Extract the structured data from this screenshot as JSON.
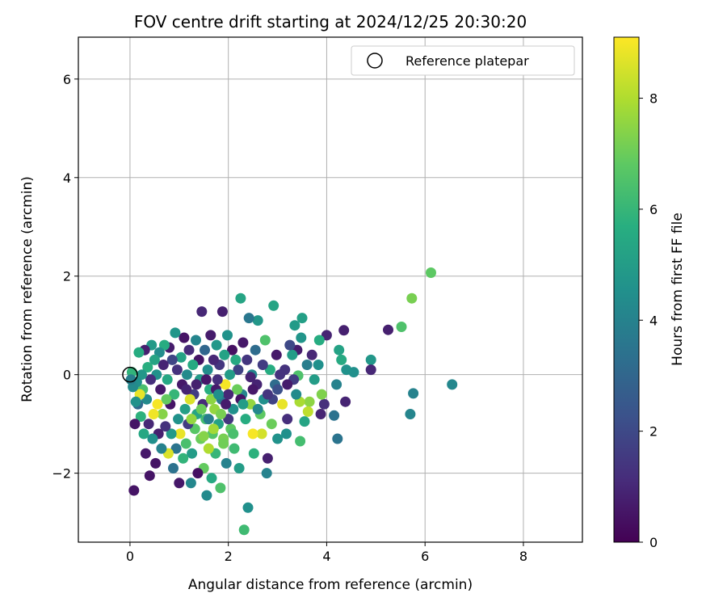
{
  "chart_data": {
    "type": "scatter",
    "title": "FOV centre drift starting at 2024/12/25 20:30:20",
    "xlabel": "Angular distance from reference (arcmin)",
    "ylabel": "Rotation from reference (arcmin)",
    "xlim": [
      -1.05,
      9.2
    ],
    "ylim": [
      -3.4,
      6.85
    ],
    "xticks": [
      0,
      2,
      4,
      6,
      8
    ],
    "yticks": [
      -2,
      0,
      2,
      4,
      6
    ],
    "grid": true,
    "legend": {
      "position": "top-right",
      "entries": [
        "Reference platepar"
      ]
    },
    "reference_point": {
      "x": 0,
      "y": 0
    },
    "colorbar": {
      "label": "Hours from first FF file",
      "range": [
        0,
        9.1
      ],
      "ticks": [
        0,
        2,
        4,
        6,
        8
      ],
      "colormap": "viridis"
    },
    "series": [
      {
        "name": "Reference platepar",
        "points": [
          [
            6.12,
            2.07,
            6.8
          ],
          [
            5.73,
            1.55,
            7.2
          ],
          [
            5.52,
            0.97,
            6.5
          ],
          [
            5.25,
            0.91,
            0.8
          ],
          [
            6.55,
            -0.2,
            4.2
          ],
          [
            5.76,
            -0.38,
            4.0
          ],
          [
            5.7,
            -0.8,
            4.1
          ],
          [
            4.9,
            0.3,
            4.8
          ],
          [
            4.9,
            0.1,
            1.0
          ],
          [
            4.55,
            0.05,
            4.5
          ],
          [
            4.4,
            0.1,
            4.6
          ],
          [
            4.35,
            0.9,
            0.8
          ],
          [
            4.38,
            -0.55,
            0.9
          ],
          [
            4.3,
            0.3,
            5.5
          ],
          [
            4.25,
            0.5,
            5.2
          ],
          [
            4.22,
            -1.3,
            3.5
          ],
          [
            4.2,
            -0.2,
            4.0
          ],
          [
            4.15,
            -0.83,
            3.4
          ],
          [
            4.0,
            0.8,
            0.9
          ],
          [
            3.95,
            -0.6,
            1.2
          ],
          [
            3.9,
            -0.4,
            7.3
          ],
          [
            3.88,
            -0.8,
            0.9
          ],
          [
            3.85,
            0.7,
            5.6
          ],
          [
            3.83,
            0.2,
            4.5
          ],
          [
            3.75,
            -0.1,
            5.0
          ],
          [
            3.7,
            0.4,
            1.0
          ],
          [
            3.65,
            -0.55,
            7.5
          ],
          [
            3.62,
            -0.75,
            8.2
          ],
          [
            3.6,
            0.2,
            3.8
          ],
          [
            3.55,
            -0.95,
            5.3
          ],
          [
            3.5,
            1.15,
            5.1
          ],
          [
            3.48,
            0.75,
            4.7
          ],
          [
            3.46,
            -1.35,
            6.3
          ],
          [
            3.45,
            -0.55,
            7.9
          ],
          [
            3.42,
            -0.02,
            6.5
          ],
          [
            3.4,
            0.5,
            0.7
          ],
          [
            3.38,
            -0.4,
            4.3
          ],
          [
            3.35,
            1.0,
            4.9
          ],
          [
            3.33,
            -0.1,
            1.6
          ],
          [
            3.3,
            0.4,
            5.0
          ],
          [
            3.25,
            0.6,
            2.0
          ],
          [
            3.2,
            -0.9,
            1.2
          ],
          [
            3.18,
            -1.2,
            4.5
          ],
          [
            3.15,
            0.1,
            1.3
          ],
          [
            3.1,
            -0.6,
            8.8
          ],
          [
            3.05,
            0.0,
            1.3
          ],
          [
            3.0,
            -1.3,
            4.6
          ],
          [
            2.98,
            0.4,
            0.6
          ],
          [
            2.95,
            -0.2,
            3.2
          ],
          [
            2.92,
            1.4,
            5.3
          ],
          [
            2.9,
            -0.5,
            1.8
          ],
          [
            2.88,
            -1.0,
            7.0
          ],
          [
            2.85,
            0.1,
            5.6
          ],
          [
            2.8,
            -1.7,
            0.8
          ],
          [
            2.78,
            -2.0,
            4.0
          ],
          [
            2.75,
            0.7,
            6.5
          ],
          [
            2.72,
            -0.5,
            4.5
          ],
          [
            2.7,
            0.2,
            1.6
          ],
          [
            2.68,
            -1.2,
            8.5
          ],
          [
            2.65,
            -0.8,
            6.8
          ],
          [
            2.6,
            1.1,
            4.8
          ],
          [
            2.58,
            -0.2,
            0.9
          ],
          [
            2.55,
            0.5,
            3.2
          ],
          [
            2.52,
            -1.6,
            5.8
          ],
          [
            2.5,
            -1.2,
            9.0
          ],
          [
            2.48,
            0.0,
            4.2
          ],
          [
            2.45,
            -0.6,
            7.6
          ],
          [
            2.42,
            1.15,
            3.6
          ],
          [
            2.4,
            -2.7,
            4.5
          ],
          [
            2.38,
            0.3,
            1.4
          ],
          [
            2.35,
            -0.9,
            5.6
          ],
          [
            2.32,
            -3.15,
            6.2
          ],
          [
            2.3,
            0.65,
            0.6
          ],
          [
            2.28,
            -0.4,
            4.1
          ],
          [
            2.25,
            1.55,
            5.3
          ],
          [
            2.22,
            -1.9,
            5.0
          ],
          [
            2.2,
            0.1,
            1.8
          ],
          [
            2.18,
            -0.3,
            7.0
          ],
          [
            2.15,
            0.3,
            5.5
          ],
          [
            2.12,
            -1.5,
            6.2
          ],
          [
            2.1,
            -0.7,
            4.5
          ],
          [
            2.08,
            0.5,
            0.4
          ],
          [
            2.05,
            -1.1,
            6.8
          ],
          [
            2.03,
            0.0,
            5.0
          ],
          [
            2.0,
            -0.9,
            1.4
          ],
          [
            1.98,
            0.8,
            4.6
          ],
          [
            1.96,
            -1.8,
            4.0
          ],
          [
            1.94,
            -0.2,
            9.0
          ],
          [
            1.92,
            0.4,
            5.2
          ],
          [
            1.9,
            -1.3,
            7.2
          ],
          [
            1.88,
            1.28,
            0.8
          ],
          [
            1.86,
            -0.5,
            3.6
          ],
          [
            1.84,
            -2.3,
            6.5
          ],
          [
            1.82,
            0.2,
            1.4
          ],
          [
            1.8,
            -1.0,
            5.2
          ],
          [
            1.78,
            -0.1,
            1.2
          ],
          [
            1.76,
            0.6,
            4.8
          ],
          [
            1.74,
            -1.6,
            6.0
          ],
          [
            1.72,
            -0.7,
            7.6
          ],
          [
            1.7,
            0.3,
            1.0
          ],
          [
            1.68,
            -1.2,
            6.6
          ],
          [
            1.66,
            -2.1,
            5.5
          ],
          [
            1.64,
            0.8,
            0.7
          ],
          [
            1.62,
            -0.3,
            5.7
          ],
          [
            1.6,
            -1.5,
            8.0
          ],
          [
            1.58,
            0.1,
            4.4
          ],
          [
            1.56,
            -2.45,
            4.3
          ],
          [
            1.54,
            -0.9,
            6.3
          ],
          [
            1.52,
            0.5,
            3.0
          ],
          [
            1.5,
            -1.9,
            6.9
          ],
          [
            1.48,
            -0.6,
            1.1
          ],
          [
            1.46,
            1.28,
            1.0
          ],
          [
            1.44,
            -1.3,
            7.0
          ],
          [
            1.42,
            -0.1,
            4.9
          ],
          [
            1.4,
            0.3,
            0.5
          ],
          [
            1.38,
            -2.0,
            0.4
          ],
          [
            1.36,
            -0.8,
            5.3
          ],
          [
            1.34,
            0.7,
            4.1
          ],
          [
            1.32,
            -1.1,
            6.7
          ],
          [
            1.3,
            -0.4,
            1.6
          ],
          [
            1.28,
            0.2,
            5.5
          ],
          [
            1.26,
            -1.6,
            5.0
          ],
          [
            1.24,
            -2.2,
            4.2
          ],
          [
            1.22,
            -0.5,
            8.6
          ],
          [
            1.2,
            0.5,
            1.1
          ],
          [
            1.18,
            -1.0,
            1.6
          ],
          [
            1.16,
            0.0,
            4.3
          ],
          [
            1.14,
            -1.4,
            6.4
          ],
          [
            1.12,
            -0.7,
            5.1
          ],
          [
            1.1,
            0.75,
            0.5
          ],
          [
            1.08,
            -1.7,
            5.9
          ],
          [
            1.06,
            -0.2,
            0.6
          ],
          [
            1.04,
            0.35,
            5.2
          ],
          [
            1.02,
            -1.2,
            8.8
          ],
          [
            1.0,
            -2.2,
            0.6
          ],
          [
            0.98,
            -0.9,
            4.6
          ],
          [
            0.96,
            0.1,
            1.3
          ],
          [
            0.94,
            -1.5,
            3.5
          ],
          [
            0.92,
            0.85,
            4.7
          ],
          [
            0.9,
            -0.4,
            6.0
          ],
          [
            0.88,
            -1.9,
            3.4
          ],
          [
            0.86,
            0.3,
            1.9
          ],
          [
            0.84,
            -1.2,
            4.9
          ],
          [
            0.82,
            -0.6,
            0.5
          ],
          [
            0.8,
            0.55,
            0.7
          ],
          [
            0.78,
            -1.6,
            8.6
          ],
          [
            0.76,
            -0.1,
            5.4
          ],
          [
            0.74,
            -0.5,
            6.9
          ],
          [
            0.72,
            -1.05,
            1.3
          ],
          [
            0.7,
            0.6,
            5.6
          ],
          [
            0.68,
            0.2,
            0.9
          ],
          [
            0.66,
            -0.8,
            7.4
          ],
          [
            0.64,
            -1.5,
            4.0
          ],
          [
            0.62,
            -0.3,
            0.6
          ],
          [
            0.6,
            0.45,
            4.4
          ],
          [
            0.58,
            -1.2,
            0.8
          ],
          [
            0.56,
            -0.6,
            9.0
          ],
          [
            0.54,
            0.0,
            4.6
          ],
          [
            0.52,
            -1.8,
            0.5
          ],
          [
            0.5,
            0.3,
            5.3
          ],
          [
            0.48,
            -0.8,
            8.9
          ],
          [
            0.46,
            -1.3,
            4.5
          ],
          [
            0.44,
            0.6,
            4.9
          ],
          [
            0.42,
            -0.1,
            1.2
          ],
          [
            0.4,
            -2.05,
            0.5
          ],
          [
            0.38,
            -1.0,
            1.0
          ],
          [
            0.36,
            0.15,
            5.7
          ],
          [
            0.34,
            -0.5,
            4.3
          ],
          [
            0.32,
            -1.6,
            0.6
          ],
          [
            0.3,
            0.5,
            0.8
          ],
          [
            0.28,
            -1.2,
            5.4
          ],
          [
            0.26,
            -0.3,
            6.4
          ],
          [
            0.24,
            0.0,
            4.8
          ],
          [
            0.22,
            -0.85,
            5.8
          ],
          [
            0.2,
            -0.4,
            8.8
          ],
          [
            0.18,
            0.45,
            5.6
          ],
          [
            0.16,
            -0.6,
            3.1
          ],
          [
            0.14,
            -0.15,
            4.5
          ],
          [
            0.12,
            -0.55,
            4.6
          ],
          [
            0.1,
            -1.0,
            0.5
          ],
          [
            0.08,
            -2.35,
            0.5
          ],
          [
            0.06,
            -0.25,
            4.3
          ],
          [
            0.04,
            0.05,
            5.9
          ],
          [
            0.02,
            -0.1,
            3.9
          ],
          [
            2.0,
            -0.4,
            1.0
          ],
          [
            1.75,
            -0.3,
            0.7
          ],
          [
            1.55,
            -0.1,
            0.6
          ],
          [
            1.35,
            -0.2,
            0.8
          ],
          [
            1.15,
            -0.3,
            0.9
          ],
          [
            1.95,
            -0.6,
            0.7
          ],
          [
            2.25,
            -0.5,
            0.5
          ],
          [
            2.5,
            -0.3,
            0.6
          ],
          [
            1.65,
            -0.5,
            7.5
          ],
          [
            1.45,
            -0.7,
            7.0
          ],
          [
            1.85,
            -0.8,
            7.2
          ],
          [
            1.25,
            -0.9,
            7.6
          ],
          [
            1.7,
            -1.1,
            7.8
          ],
          [
            1.5,
            -1.25,
            7.4
          ],
          [
            1.9,
            -1.4,
            7.1
          ],
          [
            2.1,
            -1.2,
            6.4
          ],
          [
            1.6,
            -0.9,
            3.8
          ],
          [
            1.8,
            -0.4,
            4.5
          ],
          [
            2.3,
            -0.6,
            5.0
          ],
          [
            2.6,
            -0.7,
            4.2
          ],
          [
            2.8,
            -0.4,
            1.4
          ],
          [
            3.0,
            -0.3,
            2.2
          ],
          [
            3.2,
            -0.2,
            0.7
          ],
          [
            2.45,
            -0.05,
            0.9
          ]
        ]
      }
    ]
  }
}
